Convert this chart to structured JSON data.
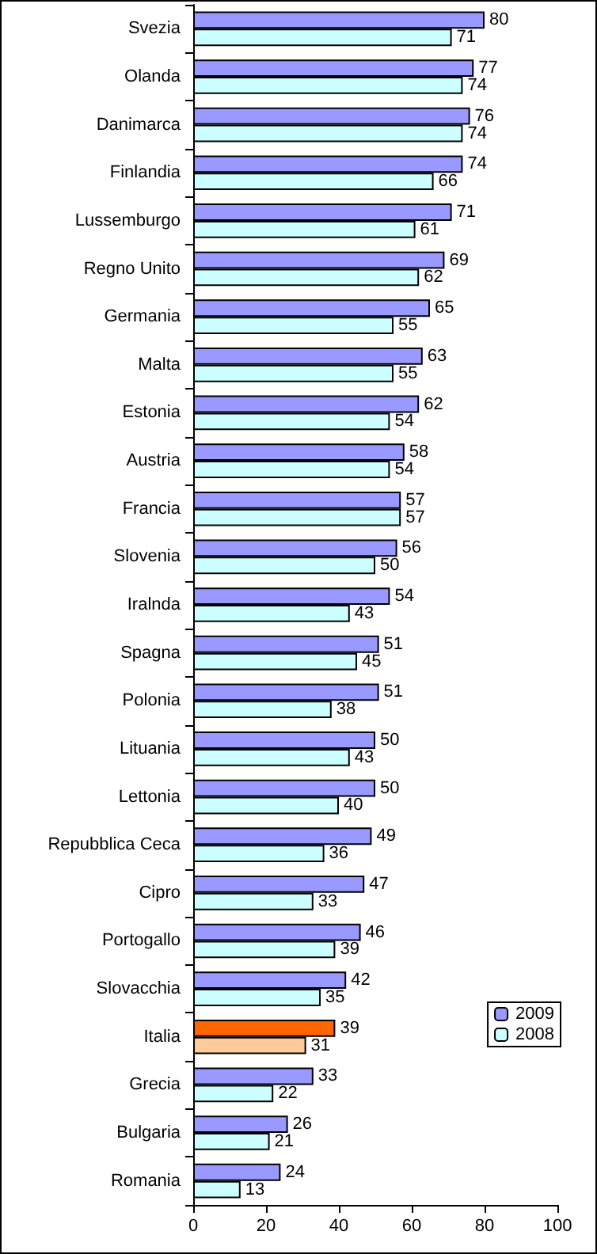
{
  "chart_data": {
    "type": "bar",
    "orientation": "horizontal",
    "categories": [
      "Svezia",
      "Olanda",
      "Danimarca",
      "Finlandia",
      "Lussemburgo",
      "Regno Unito",
      "Germania",
      "Malta",
      "Estonia",
      "Austria",
      "Francia",
      "Slovenia",
      "Iralnda",
      "Spagna",
      "Polonia",
      "Lituania",
      "Lettonia",
      "Repubblica Ceca",
      "Cipro",
      "Portogallo",
      "Slovacchia",
      "Italia",
      "Grecia",
      "Bulgaria",
      "Romania"
    ],
    "series": [
      {
        "name": "2009",
        "color": "#9999ff",
        "colors": [
          "#9999ff",
          "#9999ff",
          "#9999ff",
          "#9999ff",
          "#9999ff",
          "#9999ff",
          "#9999ff",
          "#9999ff",
          "#9999ff",
          "#9999ff",
          "#9999ff",
          "#9999ff",
          "#9999ff",
          "#9999ff",
          "#9999ff",
          "#9999ff",
          "#9999ff",
          "#9999ff",
          "#9999ff",
          "#9999ff",
          "#9999ff",
          "#ff6600",
          "#9999ff",
          "#9999ff",
          "#9999ff"
        ],
        "values": [
          80,
          77,
          76,
          74,
          71,
          69,
          65,
          63,
          62,
          58,
          57,
          56,
          54,
          51,
          51,
          50,
          50,
          49,
          47,
          46,
          42,
          39,
          33,
          26,
          24
        ]
      },
      {
        "name": "2008",
        "color": "#ccffff",
        "colors": [
          "#ccffff",
          "#ccffff",
          "#ccffff",
          "#ccffff",
          "#ccffff",
          "#ccffff",
          "#ccffff",
          "#ccffff",
          "#ccffff",
          "#ccffff",
          "#ccffff",
          "#ccffff",
          "#ccffff",
          "#ccffff",
          "#ccffff",
          "#ccffff",
          "#ccffff",
          "#ccffff",
          "#ccffff",
          "#ccffff",
          "#ccffff",
          "#ffcc99",
          "#ccffff",
          "#ccffff",
          "#ccffff"
        ],
        "values": [
          71,
          74,
          74,
          66,
          61,
          62,
          55,
          55,
          54,
          54,
          57,
          50,
          43,
          45,
          38,
          43,
          40,
          36,
          33,
          39,
          35,
          31,
          22,
          21,
          13
        ]
      }
    ],
    "xlim": [
      0,
      100
    ],
    "xticks": [
      0,
      20,
      40,
      60,
      80,
      100
    ],
    "data_labels": true,
    "grid": false,
    "legend": "right"
  }
}
